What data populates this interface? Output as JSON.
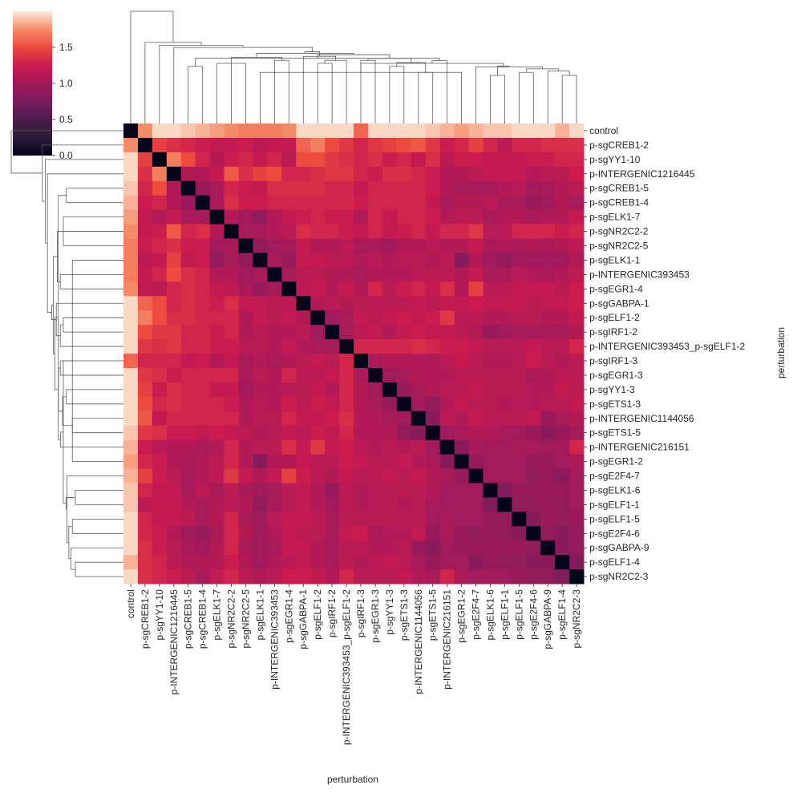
{
  "chart_data": {
    "type": "heatmap",
    "title": "",
    "xlabel": "perturbation",
    "ylabel": "perturbation",
    "labels": [
      "control",
      "p-sgCREB1-2",
      "p-sgYY1-10",
      "p-INTERGENIC1216445",
      "p-sgCREB1-5",
      "p-sgCREB1-4",
      "p-sgELK1-7",
      "p-sgNR2C2-2",
      "p-sgNR2C2-5",
      "p-sgELK1-1",
      "p-INTERGENIC393453",
      "p-sgEGR1-4",
      "p-sgGABPA-1",
      "p-sgELF1-2",
      "p-sgIRF1-2",
      "p-INTERGENIC393453_p-sgELF1-2",
      "p-sgIRF1-3",
      "p-sgEGR1-3",
      "p-sgYY1-3",
      "p-sgETS1-3",
      "p-INTERGENIC1144056",
      "p-sgETS1-5",
      "p-INTERGENIC216151",
      "p-sgEGR1-2",
      "p-sgE2F4-7",
      "p-sgELK1-6",
      "p-sgELF1-1",
      "p-sgELF1-5",
      "p-sgE2F4-6",
      "p-sgGABPA-9",
      "p-sgELF1-4",
      "p-sgNR2C2-3"
    ],
    "colorbar": {
      "min": 0.0,
      "max": 2.0,
      "ticks": [
        "0.0",
        "0.5",
        "1.0",
        "1.5"
      ]
    },
    "colormap": "rocket",
    "dendrogram": true,
    "values": [
      [
        0,
        1.75,
        1.95,
        1.95,
        1.9,
        1.85,
        1.8,
        1.75,
        1.7,
        1.7,
        1.7,
        1.75,
        1.95,
        1.95,
        1.95,
        1.95,
        1.6,
        1.95,
        1.95,
        1.95,
        1.95,
        1.9,
        1.85,
        1.8,
        1.85,
        1.9,
        1.9,
        1.95,
        1.95,
        1.95,
        1.85,
        1.95
      ],
      [
        1.75,
        0,
        1.45,
        1.35,
        1.3,
        1.25,
        1.2,
        1.2,
        1.25,
        1.15,
        1.2,
        1.2,
        1.6,
        1.7,
        1.5,
        1.4,
        1.3,
        1.4,
        1.45,
        1.5,
        1.55,
        1.4,
        1.25,
        1.3,
        1.45,
        1.3,
        1.15,
        1.3,
        1.3,
        1.35,
        1.35,
        1.35
      ],
      [
        1.95,
        1.45,
        0,
        1.7,
        1.5,
        1.3,
        1.1,
        1.25,
        1.3,
        1.2,
        1.3,
        1.15,
        1.5,
        1.5,
        1.4,
        1.35,
        1.3,
        1.35,
        1.25,
        1.3,
        1.2,
        1.35,
        1.15,
        1.25,
        1.25,
        1.2,
        1.2,
        1.2,
        1.25,
        1.25,
        1.3,
        1.3
      ],
      [
        1.95,
        1.35,
        1.7,
        0,
        1.1,
        1.1,
        1.2,
        1.55,
        1.35,
        1.45,
        1.5,
        1.3,
        1.3,
        1.35,
        1.4,
        1.4,
        1.3,
        1.25,
        1.35,
        1.35,
        1.3,
        1.25,
        1.1,
        1.1,
        1.15,
        1.2,
        1.2,
        1.2,
        1.1,
        1.15,
        1.15,
        1.25
      ],
      [
        1.9,
        1.3,
        1.5,
        1.1,
        0,
        0.95,
        1.05,
        1.3,
        1.25,
        1.2,
        1.35,
        1.35,
        1.35,
        1.35,
        1.3,
        1.3,
        1.2,
        1.3,
        1.3,
        1.3,
        1.3,
        1.25,
        1.1,
        1.05,
        1.05,
        1.05,
        1.1,
        1.15,
        1.0,
        1.05,
        1.1,
        1.15
      ],
      [
        1.85,
        1.25,
        1.3,
        1.1,
        0.95,
        0,
        1.05,
        1.35,
        1.25,
        1.25,
        1.3,
        1.3,
        1.3,
        1.3,
        1.3,
        1.3,
        1.25,
        1.3,
        1.3,
        1.3,
        1.3,
        1.2,
        1.05,
        1.1,
        1.1,
        1.15,
        1.05,
        1.05,
        0.95,
        1.0,
        1.1,
        1.05
      ],
      [
        1.8,
        1.2,
        1.1,
        1.2,
        1.05,
        1.05,
        0,
        1.1,
        1.0,
        0.9,
        1.1,
        1.2,
        1.25,
        1.3,
        1.25,
        1.25,
        1.1,
        1.3,
        1.2,
        1.3,
        1.3,
        1.25,
        1.1,
        1.15,
        1.15,
        1.05,
        1.1,
        1.1,
        1.05,
        1.1,
        1.1,
        1.2
      ],
      [
        1.75,
        1.2,
        1.25,
        1.55,
        1.3,
        1.35,
        1.1,
        0,
        1.05,
        1.05,
        1.1,
        1.15,
        1.35,
        1.3,
        1.3,
        1.25,
        1.2,
        1.3,
        1.2,
        1.25,
        1.3,
        1.2,
        1.3,
        1.3,
        1.4,
        1.15,
        1.15,
        1.3,
        1.3,
        1.3,
        1.25,
        1.3
      ],
      [
        1.7,
        1.25,
        1.3,
        1.35,
        1.25,
        1.25,
        1.0,
        1.05,
        0,
        0.9,
        1.0,
        1.05,
        1.2,
        1.1,
        1.1,
        1.15,
        1.05,
        1.05,
        1.0,
        1.1,
        1.1,
        1.15,
        1.1,
        1.1,
        1.2,
        1.05,
        1.1,
        1.05,
        1.1,
        1.05,
        1.1,
        1.15
      ],
      [
        1.7,
        1.15,
        1.2,
        1.45,
        1.2,
        1.25,
        0.9,
        1.05,
        0.9,
        0,
        1.05,
        0.95,
        1.2,
        1.2,
        1.15,
        1.15,
        1.1,
        1.15,
        1.1,
        1.15,
        1.15,
        1.1,
        1.15,
        0.85,
        1.1,
        1.0,
        0.9,
        1.0,
        1.0,
        1.0,
        1.0,
        1.1
      ],
      [
        1.7,
        1.2,
        1.3,
        1.5,
        1.35,
        1.3,
        1.1,
        1.1,
        1.0,
        1.05,
        0,
        1.05,
        1.15,
        1.15,
        1.1,
        1.1,
        1.05,
        1.1,
        1.1,
        1.1,
        1.15,
        1.15,
        1.15,
        1.1,
        1.2,
        1.05,
        1.05,
        1.15,
        1.1,
        1.05,
        1.1,
        1.15
      ],
      [
        1.75,
        1.2,
        1.15,
        1.3,
        1.35,
        1.3,
        1.2,
        1.15,
        1.05,
        0.95,
        1.05,
        0,
        1.15,
        1.2,
        1.1,
        1.2,
        1.1,
        1.3,
        1.15,
        1.25,
        1.3,
        1.2,
        1.35,
        1.1,
        1.45,
        1.15,
        1.15,
        1.2,
        1.2,
        1.2,
        1.15,
        1.25
      ],
      [
        1.95,
        1.6,
        1.5,
        1.3,
        1.35,
        1.3,
        1.25,
        1.35,
        1.2,
        1.2,
        1.15,
        1.15,
        0,
        1.1,
        1.15,
        1.1,
        1.15,
        1.15,
        1.15,
        1.15,
        1.2,
        1.15,
        1.2,
        1.2,
        1.25,
        1.2,
        1.2,
        1.2,
        1.15,
        1.2,
        1.2,
        1.25
      ],
      [
        1.95,
        1.7,
        1.5,
        1.35,
        1.35,
        1.3,
        1.3,
        1.3,
        1.1,
        1.2,
        1.15,
        1.2,
        1.1,
        0,
        1.0,
        1.05,
        1.2,
        1.15,
        1.2,
        1.25,
        1.2,
        1.25,
        1.4,
        1.15,
        1.15,
        1.1,
        1.1,
        1.15,
        1.15,
        1.1,
        1.1,
        1.2
      ],
      [
        1.95,
        1.5,
        1.4,
        1.4,
        1.3,
        1.3,
        1.25,
        1.3,
        1.1,
        1.15,
        1.1,
        1.1,
        1.15,
        1.0,
        0,
        1.05,
        1.15,
        1.2,
        1.1,
        1.2,
        1.25,
        1.2,
        1.2,
        1.15,
        1.1,
        0.95,
        1.0,
        1.05,
        1.05,
        1.05,
        1.05,
        1.1
      ],
      [
        1.95,
        1.4,
        1.35,
        1.4,
        1.3,
        1.3,
        1.25,
        1.25,
        1.15,
        1.15,
        1.1,
        1.2,
        1.1,
        1.05,
        1.05,
        0,
        1.3,
        1.3,
        1.3,
        1.3,
        1.35,
        1.3,
        1.25,
        1.25,
        1.2,
        1.15,
        1.15,
        1.15,
        1.2,
        1.15,
        1.15,
        1.3
      ],
      [
        1.6,
        1.3,
        1.3,
        1.3,
        1.2,
        1.25,
        1.1,
        1.2,
        1.05,
        1.1,
        1.05,
        1.1,
        1.15,
        1.2,
        1.15,
        1.3,
        0,
        1.05,
        1.1,
        1.1,
        1.1,
        1.1,
        1.15,
        1.2,
        1.15,
        1.1,
        1.1,
        1.15,
        1.25,
        1.15,
        1.1,
        1.15
      ],
      [
        1.95,
        1.4,
        1.35,
        1.25,
        1.3,
        1.3,
        1.3,
        1.3,
        1.05,
        1.15,
        1.1,
        1.3,
        1.15,
        1.15,
        1.2,
        1.3,
        1.05,
        0,
        1.0,
        1.05,
        1.1,
        1.1,
        1.1,
        1.15,
        1.15,
        1.15,
        1.15,
        1.15,
        1.05,
        1.1,
        1.15,
        1.15
      ],
      [
        1.95,
        1.45,
        1.25,
        1.35,
        1.3,
        1.3,
        1.2,
        1.2,
        1.0,
        1.1,
        1.1,
        1.15,
        1.15,
        1.2,
        1.1,
        1.3,
        1.1,
        1.0,
        0,
        0.95,
        1.05,
        1.1,
        1.15,
        1.15,
        1.2,
        1.15,
        1.15,
        1.15,
        1.1,
        1.1,
        1.2,
        1.15
      ],
      [
        1.95,
        1.5,
        1.3,
        1.35,
        1.3,
        1.3,
        1.3,
        1.25,
        1.1,
        1.15,
        1.1,
        1.25,
        1.15,
        1.25,
        1.2,
        1.3,
        1.1,
        1.05,
        0.95,
        0,
        1.0,
        0.9,
        1.1,
        1.2,
        1.15,
        1.15,
        1.1,
        1.15,
        1.1,
        1.15,
        1.15,
        1.2
      ],
      [
        1.95,
        1.55,
        1.2,
        1.3,
        1.3,
        1.3,
        1.3,
        1.3,
        1.1,
        1.15,
        1.15,
        1.3,
        1.2,
        1.2,
        1.25,
        1.35,
        1.1,
        1.1,
        1.05,
        1.0,
        0,
        0.85,
        1.15,
        1.1,
        1.2,
        1.15,
        1.15,
        1.15,
        1.2,
        0.95,
        1.05,
        1.1
      ],
      [
        1.9,
        1.4,
        1.35,
        1.25,
        1.25,
        1.2,
        1.25,
        1.2,
        1.15,
        1.1,
        1.15,
        1.2,
        1.15,
        1.25,
        1.2,
        1.3,
        1.1,
        1.1,
        1.1,
        0.9,
        0.85,
        0,
        1.0,
        1.05,
        1.1,
        1.1,
        1.05,
        1.0,
        0.95,
        0.85,
        0.95,
        1.05
      ],
      [
        1.85,
        1.25,
        1.15,
        1.1,
        1.1,
        1.05,
        1.1,
        1.3,
        1.1,
        1.15,
        1.15,
        1.35,
        1.2,
        1.4,
        1.2,
        1.25,
        1.15,
        1.1,
        1.15,
        1.1,
        1.15,
        1.0,
        0,
        0.85,
        1.05,
        1.0,
        1.0,
        1.05,
        1.05,
        1.0,
        1.0,
        1.3
      ],
      [
        1.8,
        1.3,
        1.25,
        1.1,
        1.05,
        1.1,
        1.15,
        1.3,
        1.1,
        0.85,
        1.1,
        1.1,
        1.2,
        1.15,
        1.15,
        1.25,
        1.2,
        1.15,
        1.15,
        1.2,
        1.1,
        1.05,
        0.85,
        0,
        0.95,
        1.0,
        1.0,
        1.0,
        0.95,
        0.95,
        1.0,
        1.05
      ],
      [
        1.85,
        1.45,
        1.25,
        1.15,
        1.05,
        1.1,
        1.15,
        1.4,
        1.2,
        1.1,
        1.2,
        1.45,
        1.25,
        1.15,
        1.1,
        1.2,
        1.15,
        1.15,
        1.2,
        1.15,
        1.2,
        1.1,
        1.05,
        0.95,
        0,
        1.0,
        1.0,
        1.0,
        0.9,
        0.95,
        0.85,
        1.0
      ],
      [
        1.9,
        1.3,
        1.2,
        1.2,
        1.05,
        1.15,
        1.05,
        1.15,
        1.05,
        1.0,
        1.05,
        1.15,
        1.2,
        1.1,
        0.95,
        1.15,
        1.1,
        1.15,
        1.15,
        1.15,
        1.15,
        1.1,
        1.0,
        1.0,
        1.0,
        0,
        0.8,
        0.95,
        0.95,
        0.95,
        0.95,
        1.0
      ],
      [
        1.9,
        1.15,
        1.2,
        1.2,
        1.1,
        1.05,
        1.1,
        1.15,
        1.1,
        0.9,
        1.05,
        1.15,
        1.2,
        1.1,
        1.0,
        1.15,
        1.1,
        1.15,
        1.15,
        1.1,
        1.15,
        1.05,
        1.0,
        1.0,
        1.0,
        0.8,
        0,
        0.9,
        0.9,
        0.95,
        0.9,
        1.0
      ],
      [
        1.95,
        1.3,
        1.2,
        1.2,
        1.15,
        1.05,
        1.1,
        1.3,
        1.05,
        1.0,
        1.15,
        1.2,
        1.2,
        1.15,
        1.05,
        1.15,
        1.15,
        1.15,
        1.15,
        1.15,
        1.15,
        1.0,
        1.05,
        1.0,
        1.0,
        0.95,
        0.9,
        0,
        0.85,
        0.95,
        0.9,
        0.95
      ],
      [
        1.95,
        1.3,
        1.25,
        1.1,
        1.0,
        0.95,
        1.05,
        1.3,
        1.1,
        1.0,
        1.1,
        1.2,
        1.15,
        1.15,
        1.05,
        1.2,
        1.25,
        1.05,
        1.1,
        1.1,
        1.2,
        0.95,
        1.05,
        0.95,
        0.9,
        0.95,
        0.9,
        0.85,
        0,
        0.9,
        0.85,
        0.9
      ],
      [
        1.95,
        1.35,
        1.25,
        1.15,
        1.05,
        1.0,
        1.1,
        1.3,
        1.05,
        1.0,
        1.05,
        1.2,
        1.2,
        1.1,
        1.05,
        1.15,
        1.15,
        1.1,
        1.1,
        1.15,
        0.95,
        0.85,
        1.0,
        0.95,
        0.95,
        0.95,
        0.95,
        0.95,
        0.9,
        0,
        0.85,
        0.9
      ],
      [
        1.85,
        1.35,
        1.3,
        1.15,
        1.1,
        1.1,
        1.1,
        1.25,
        1.1,
        1.0,
        1.1,
        1.15,
        1.2,
        1.1,
        1.05,
        1.15,
        1.1,
        1.15,
        1.2,
        1.15,
        1.05,
        0.95,
        1.0,
        1.0,
        0.85,
        0.95,
        0.9,
        0.9,
        0.85,
        0.85,
        0,
        0.8
      ],
      [
        1.95,
        1.35,
        1.3,
        1.25,
        1.15,
        1.05,
        1.2,
        1.3,
        1.15,
        1.1,
        1.15,
        1.25,
        1.25,
        1.2,
        1.1,
        1.3,
        1.15,
        1.15,
        1.15,
        1.2,
        1.1,
        1.05,
        1.3,
        1.05,
        1.0,
        1.0,
        1.0,
        0.95,
        0.9,
        0.9,
        0.8,
        0
      ]
    ]
  }
}
